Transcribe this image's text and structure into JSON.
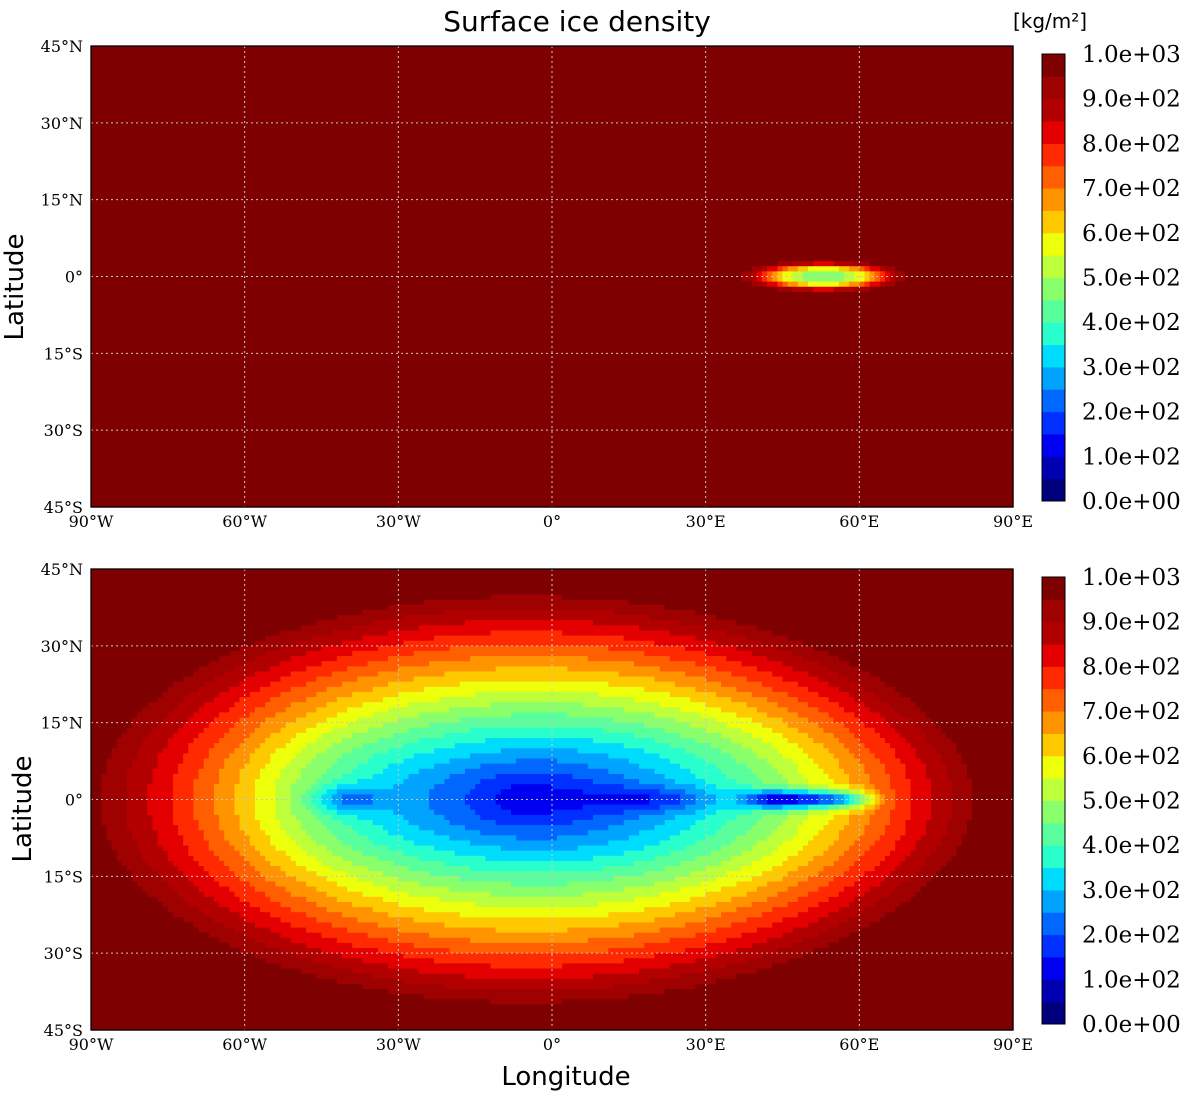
{
  "chart_data": {
    "type": "heatmap",
    "title": "Surface ice density",
    "xlabel": "Longitude",
    "ylabel": "Latitude",
    "units": "[kg/m²]",
    "xlim": [
      -90,
      90
    ],
    "ylim": [
      -45,
      45
    ],
    "x_ticks": [
      "90°W",
      "60°W",
      "30°W",
      "0°",
      "30°E",
      "60°E",
      "90°E"
    ],
    "y_ticks": [
      "45°N",
      "30°N",
      "15°N",
      "0°",
      "15°S",
      "30°S",
      "45°S"
    ],
    "grid": true,
    "colormap": "jet",
    "levels": [
      0,
      50,
      100,
      150,
      200,
      250,
      300,
      350,
      400,
      450,
      500,
      550,
      600,
      650,
      700,
      750,
      800,
      850,
      900,
      950,
      1000
    ],
    "colorbar": {
      "ticks": [
        "1.0e+03",
        "9.0e+02",
        "8.0e+02",
        "7.0e+02",
        "6.0e+02",
        "5.0e+02",
        "4.0e+02",
        "3.0e+02",
        "2.0e+02",
        "1.0e+02",
        "0.0e+00"
      ],
      "colors": [
        "#00007f",
        "#0000b2",
        "#0000f1",
        "#0030ff",
        "#0068ff",
        "#00a4ff",
        "#00dcfe",
        "#29ffcd",
        "#5aff9d",
        "#8aff6c",
        "#bcff3a",
        "#edff0a",
        "#ffc900",
        "#ff9400",
        "#ff5f00",
        "#ff2a00",
        "#e40000",
        "#b20000",
        "#9f0000",
        "#7f0000"
      ]
    },
    "panels": [
      {
        "name": "top",
        "background_value": 1000,
        "features": [
          {
            "shape": "elongated-spot",
            "center": [
              53,
              0
            ],
            "half_widths": [
              13,
              2.5
            ],
            "min_value": 470,
            "extends_lon": [
              34,
              67
            ]
          }
        ]
      },
      {
        "name": "bottom",
        "background_value": 1000,
        "features": [
          {
            "shape": "broad-depression",
            "center": [
              -5,
              0
            ],
            "half_widths": [
              88,
              45
            ],
            "min_value": 200
          },
          {
            "shape": "local-minimum",
            "center": [
              -40,
              0
            ],
            "value": 20
          },
          {
            "shape": "elongated-minimum",
            "center": [
              50,
              0
            ],
            "extends_lon": [
              38,
              65
            ],
            "value": 10
          }
        ]
      }
    ]
  }
}
